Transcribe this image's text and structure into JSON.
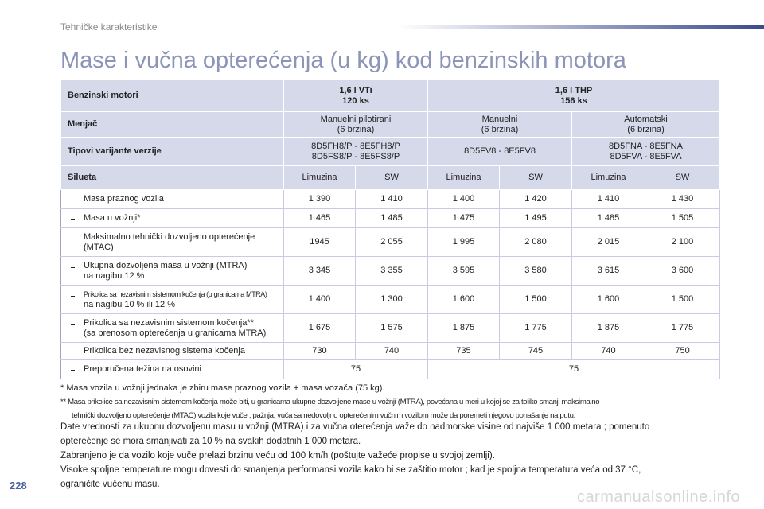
{
  "header": {
    "section": "Tehničke karakteristike",
    "title": "Mase i vučna opterećenja (u kg) kod benzinskih motora"
  },
  "table": {
    "header_rows": [
      {
        "label": "Benzinski motori",
        "cells": [
          [
            "1,6 l VTi",
            "120 ks"
          ],
          [
            "1,6 l THP",
            "156 ks"
          ]
        ]
      },
      {
        "label": "Menjač",
        "cells": [
          [
            "Manuelni pilotirani",
            "(6 brzina)"
          ],
          [
            "Manuelni",
            "(6 brzina)"
          ],
          [
            "Automatski",
            "(6 brzina)"
          ]
        ]
      },
      {
        "label": "Tipovi varijante verzije",
        "cells": [
          [
            "8D5FH8/P - 8E5FH8/P",
            "8D5FS8/P - 8E5FS8/P"
          ],
          [
            "8D5FV8 - 8E5FV8"
          ],
          [
            "8D5FNA - 8E5FNA",
            "8D5FVA - 8E5FVA"
          ]
        ]
      },
      {
        "label": "Silueta",
        "cells": [
          [
            "Limuzina"
          ],
          [
            "SW"
          ],
          [
            "Limuzina"
          ],
          [
            "SW"
          ],
          [
            "Limuzina"
          ],
          [
            "SW"
          ]
        ]
      }
    ],
    "rows": [
      {
        "label": [
          "Masa praznog vozila"
        ],
        "cells": [
          "1 390",
          "1 410",
          "1 400",
          "1 420",
          "1 410",
          "1 430"
        ]
      },
      {
        "label": [
          "Masa u vožnji*"
        ],
        "cells": [
          "1 465",
          "1 485",
          "1 475",
          "1 495",
          "1 485",
          "1 505"
        ]
      },
      {
        "label": [
          "Maksimalno tehnički dozvoljeno opterećenje",
          "(MTAC)"
        ],
        "cells": [
          "1945",
          "2 055",
          "1 995",
          "2 080",
          "2 015",
          "2 100"
        ]
      },
      {
        "label": [
          "Ukupna dozvoljena masa u vožnji (MTRA)",
          "na nagibu 12 %"
        ],
        "cells": [
          "3 345",
          "3 355",
          "3 595",
          "3 580",
          "3 615",
          "3 600"
        ]
      },
      {
        "label": [
          "Prikolica sa nezavisnim sistemom kočenja (u granicama MTRA)",
          "na nagibu 10 % ili 12 %"
        ],
        "cells": [
          "1 400",
          "1 300",
          "1 600",
          "1 500",
          "1 600",
          "1 500"
        ]
      },
      {
        "label": [
          "Prikolica sa nezavisnim sistemom kočenja**",
          "(sa prenosom opterećenja u granicama MTRA)"
        ],
        "cells": [
          "1 675",
          "1 575",
          "1 875",
          "1 775",
          "1 875",
          "1 775"
        ]
      },
      {
        "label": [
          "Prikolica bez nezavisnog sistema kočenja"
        ],
        "cells": [
          "730",
          "740",
          "735",
          "745",
          "740",
          "750"
        ]
      },
      {
        "label": [
          "Preporučena težina na osovini"
        ],
        "cells": [
          "75",
          "75"
        ]
      }
    ]
  },
  "footnotes": [
    [
      "* Masa vozila u vožnji jednaka je zbiru mase praznog vozila + masa vozača (75 kg)."
    ],
    [
      "** Masa prikolice sa nezavisnim sistemom kočenja može biti, u granicama ukupne dozvoljene mase u vožnji (MTRA), povećana u meri u kojoj se za toliko smanji maksimalno",
      "tehnički dozvoljeno opterećenje (MTAC) vozila koje vuče ; pažnja, vuča sa nedovoljno opterećenim vučnim vozilom može da poremeti njegovo ponašanje na putu."
    ]
  ],
  "paragraph": [
    "Date vrednosti za ukupnu dozvoljenu masu u vožnji (MTRA) i za vučna oterećenja važe do nadmorske visine od najviše 1 000 metara ; pomenuto",
    "opterećenje se mora smanjivati za 10 % na svakih dodatnih 1 000 metara.",
    "Zabranjeno je da vozilo koje vuče prelazi brzinu veću od 100 km/h (poštujte važeće propise u svojoj zemlji).",
    "Visoke spoljne temperature mogu dovesti do smanjenja performansi vozila kako bi se zaštitio motor ; kad je spoljna temperatura veća od 37 °C,",
    "ograničite vučenu masu."
  ],
  "page_number": "228",
  "watermark": "carmanualsonline.info"
}
